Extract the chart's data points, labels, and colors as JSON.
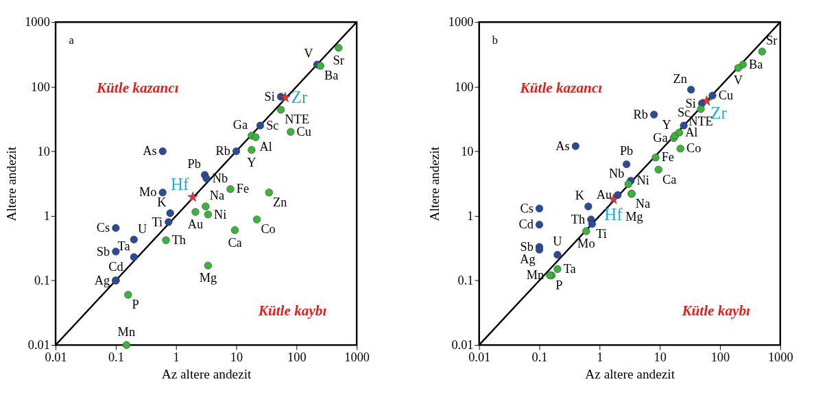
{
  "chart_data": [
    {
      "type": "scatter",
      "xlabel": "Az altere andezit",
      "ylabel": "Altere andezit",
      "log": "xy",
      "grid": false,
      "xlim": [
        0.01,
        1000
      ],
      "ylim": [
        0.01,
        1000
      ],
      "xticks": [
        0.01,
        0.1,
        1,
        10,
        100,
        1000
      ],
      "yticks": [
        0.01,
        0.1,
        1,
        10,
        100,
        1000
      ],
      "annotations": [
        "a",
        "Kütle kazancı",
        "Kütle kaybı"
      ],
      "series": [
        {
          "type": "line",
          "color": "#000000",
          "x": [
            0.01,
            1000
          ],
          "values": [
            0.01,
            1000
          ]
        },
        {
          "color": "#2a4a9a",
          "marker": "circle",
          "x": [
            220,
            55,
            25,
            10,
            0.6,
            3,
            3.2,
            0.6,
            0.8,
            0.75,
            0.1,
            0.2,
            0.1,
            0.2,
            0.1,
            0.1
          ],
          "values": [
            220,
            70,
            25,
            10,
            10,
            4.3,
            3.8,
            2.3,
            1.1,
            0.8,
            0.65,
            0.43,
            0.28,
            0.23,
            0.1,
            0.1
          ],
          "value_labels": [
            "V",
            "Si",
            "Sc",
            "Rb",
            "As",
            "Pb",
            "Nb",
            "Mo",
            "K",
            "Ti",
            "Cs",
            "U",
            "Sb",
            "Ta",
            "Ag",
            "Cd"
          ]
        },
        {
          "color": "#3cb43c",
          "marker": "circle",
          "x": [
            500,
            250,
            55,
            80,
            18,
            21,
            18,
            8,
            35,
            3.1,
            2.1,
            3.4,
            22,
            9.5,
            0.68,
            3.4,
            0.16,
            0.15
          ],
          "values": [
            400,
            210,
            44,
            20,
            17.5,
            16.5,
            10.5,
            2.6,
            2.3,
            1.4,
            1.15,
            1.05,
            0.88,
            0.6,
            0.42,
            0.17,
            0.06,
            0.01
          ],
          "value_labels": [
            "Sr",
            "Ba",
            "NTE",
            "Cu",
            "Ga",
            "Al",
            "Y",
            "Fe",
            "Zn",
            "Na",
            "Au",
            "Ni",
            "Co",
            "Ca",
            "Th",
            "Mg",
            "P",
            "Mn"
          ]
        },
        {
          "color": "#e8343a",
          "marker": "star",
          "x": [
            65,
            1.9
          ],
          "values": [
            68,
            1.95
          ],
          "value_labels": [
            "Zr",
            "Hf"
          ]
        }
      ]
    },
    {
      "type": "scatter",
      "xlabel": "Az altere andezit",
      "ylabel": "Altere andezit",
      "log": "xy",
      "grid": false,
      "xlim": [
        0.01,
        1000
      ],
      "ylim": [
        0.01,
        1000
      ],
      "xticks": [
        0.01,
        0.1,
        1,
        10,
        100,
        1000
      ],
      "yticks": [
        0.01,
        0.1,
        1,
        10,
        100,
        1000
      ],
      "annotations": [
        "b",
        "Kütle kazancı",
        "Kütle kaybı"
      ],
      "series": [
        {
          "type": "line",
          "color": "#000000",
          "x": [
            0.01,
            1000
          ],
          "values": [
            0.01,
            1000
          ]
        },
        {
          "color": "#2a4a9a",
          "marker": "circle",
          "x": [
            33,
            75,
            50,
            8,
            25,
            0.4,
            2.8,
            3.3,
            2,
            0.65,
            0.1,
            0.1,
            0.72,
            0.75,
            0.1,
            0.1,
            0.2
          ],
          "values": [
            90,
            73,
            55,
            37,
            25,
            12,
            6.3,
            3.5,
            2.1,
            1.4,
            1.3,
            0.73,
            0.88,
            0.75,
            0.33,
            0.3,
            0.25
          ],
          "value_labels": [
            "Zn",
            "Cu",
            "Si",
            "Rb",
            "Sc",
            "As",
            "Pb",
            "Ni",
            "Au",
            "K",
            "Cs",
            "Cd",
            "Th",
            "Ti",
            "Sb",
            "Ag",
            "U"
          ]
        },
        {
          "color": "#3cb43c",
          "marker": "circle",
          "x": [
            500,
            240,
            200,
            48,
            17,
            18,
            21,
            22,
            8.5,
            9.5,
            3,
            3.4,
            3.4,
            0.6,
            0.2,
            0.16,
            0.15
          ],
          "values": [
            350,
            220,
            195,
            45,
            16,
            17.5,
            19.5,
            11,
            8,
            5.2,
            3.1,
            2.2,
            2.2,
            0.58,
            0.15,
            0.12,
            0.12
          ],
          "value_labels": [
            "Sr",
            "Ba",
            "V",
            "NTE",
            "Ga",
            "Y",
            "Al",
            "Co",
            "Fe",
            "Ca",
            "Nb",
            "Na",
            "Mg",
            "Mo",
            "Ta",
            "P",
            "Mn"
          ]
        },
        {
          "color": "#e8343a",
          "marker": "star",
          "x": [
            60,
            1.7
          ],
          "values": [
            60,
            1.8
          ],
          "value_labels": [
            "Zr",
            "Hf"
          ]
        }
      ]
    }
  ]
}
